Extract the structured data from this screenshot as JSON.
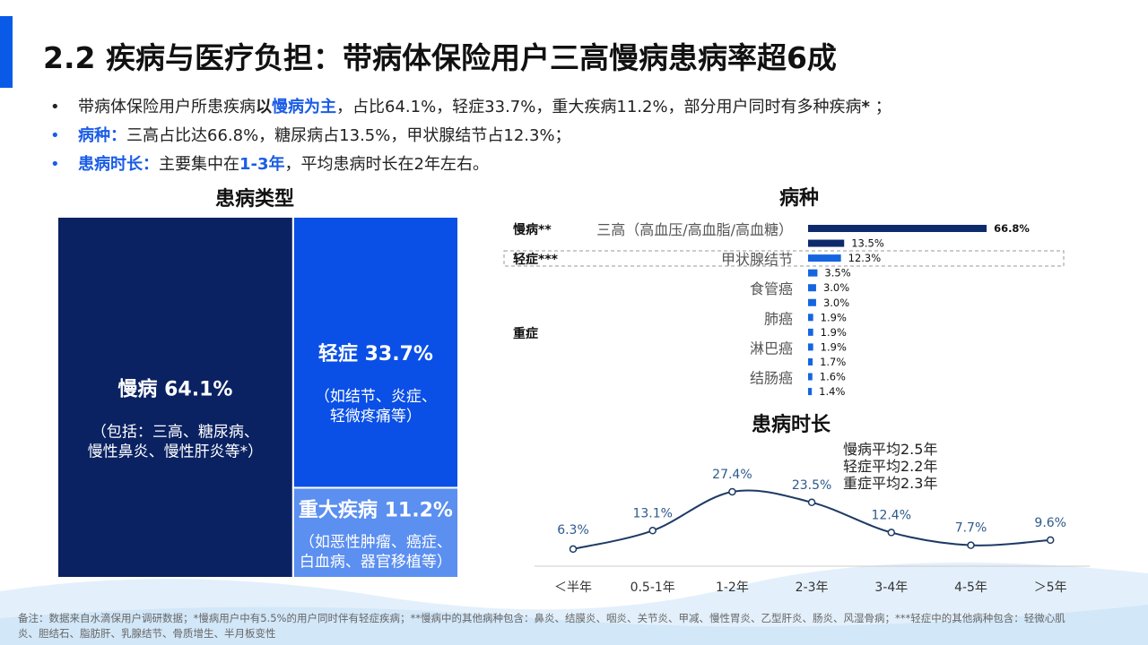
{
  "title": "2.2 疾病与医疗负担：带病体保险用户三高慢病患病率超6成",
  "bullets": [
    {
      "color": "#222222",
      "runs": [
        {
          "text": "带病体保险用户所患疾病",
          "bold": false,
          "color": "#222222"
        },
        {
          "text": "以",
          "bold": true,
          "color": "#222222"
        },
        {
          "text": "慢病为主",
          "bold": true,
          "color": "#1a5ce6"
        },
        {
          "text": "，占比64.1%，轻症33.7%，重大疾病11.2%，部分用户同时有多种疾病",
          "bold": false,
          "color": "#222222"
        },
        {
          "text": "*",
          "bold": true,
          "color": "#222222"
        },
        {
          "text": " ；",
          "bold": false,
          "color": "#222222"
        }
      ]
    },
    {
      "color": "#1a5ce6",
      "runs": [
        {
          "text": "病种：",
          "bold": true,
          "color": "#1a5ce6"
        },
        {
          "text": "三高占比达66.8%，糖尿病占13.5%，甲状腺结节占12.3%；",
          "bold": false,
          "color": "#222222"
        }
      ]
    },
    {
      "color": "#1a5ce6",
      "runs": [
        {
          "text": "患病时长：",
          "bold": true,
          "color": "#1a5ce6"
        },
        {
          "text": "主要集中在",
          "bold": false,
          "color": "#222222"
        },
        {
          "text": "1-3年",
          "bold": true,
          "color": "#1a5ce6"
        },
        {
          "text": "，平均患病时长在2年左右。",
          "bold": false,
          "color": "#222222"
        }
      ]
    }
  ],
  "chart_data": [
    {
      "type": "treemap",
      "title": "患病类型",
      "categories": [
        "慢病",
        "轻症",
        "重大疾病"
      ],
      "values": [
        64.1,
        33.7,
        11.2
      ],
      "value_labels": [
        "64.1%",
        "33.7%",
        "11.2%"
      ],
      "notes": [
        [
          "（包括：三高、糖尿病、",
          "慢性鼻炎、慢性肝炎等*）"
        ],
        [
          "（如结节、炎症、",
          "轻微疼痛等）"
        ],
        [
          "（如恶性肿瘤、癌症、",
          "白血病、器官移植等）"
        ]
      ],
      "colors": [
        "#0a2262",
        "#0a4fe6",
        "#5b8ff0"
      ]
    },
    {
      "type": "hbar",
      "title": "病种",
      "categories": [
        "三高（高血压/高血脂/高血糖）",
        null,
        "甲状腺结节",
        null,
        "食管癌",
        null,
        "肺癌",
        null,
        "淋巴癌",
        null,
        "结肠癌",
        null
      ],
      "values": [
        66.8,
        13.5,
        12.3,
        3.5,
        3.0,
        3.0,
        1.9,
        1.9,
        1.9,
        1.7,
        1.6,
        1.4
      ],
      "value_labels": [
        "66.8%",
        "13.5%",
        "12.3%",
        "3.5%",
        "3.0%",
        "3.0%",
        "1.9%",
        "1.9%",
        "1.9%",
        "1.7%",
        "1.6%",
        "1.4%"
      ],
      "groups": [
        {
          "name": "慢病**",
          "count": 2,
          "color": "#0d2a6b"
        },
        {
          "name": "轻症***",
          "count": 1,
          "color": "#1565e0"
        },
        {
          "name": "重症",
          "count": 9,
          "color": "#1565e0"
        }
      ]
    },
    {
      "type": "line",
      "title": "患病时长",
      "categories": [
        "＜半年",
        "0.5-1年",
        "1-2年",
        "2-3年",
        "3-4年",
        "4-5年",
        "＞5年"
      ],
      "values": [
        6.3,
        13.1,
        27.4,
        23.5,
        12.4,
        7.7,
        9.6
      ],
      "value_labels": [
        "6.3%",
        "13.1%",
        "27.4%",
        "23.5%",
        "12.4%",
        "7.7%",
        "9.6%"
      ],
      "color": "#1d3a66",
      "annotations": [
        "慢病平均2.5年",
        "轻症平均2.2年",
        "重症平均2.3年"
      ]
    }
  ],
  "footnote": "备注：数据来自水滴保用户调研数据；*慢病用户中有5.5%的用户同时伴有轻症疾病；**慢病中的其他病种包含：鼻炎、结膜炎、咽炎、关节炎、甲减、慢性胃炎、乙型肝炎、肠炎、风湿骨病；***轻症中的其他病种包含：轻微心肌炎、胆结石、脂肪肝、乳腺结节、骨质增生、半月板变性"
}
